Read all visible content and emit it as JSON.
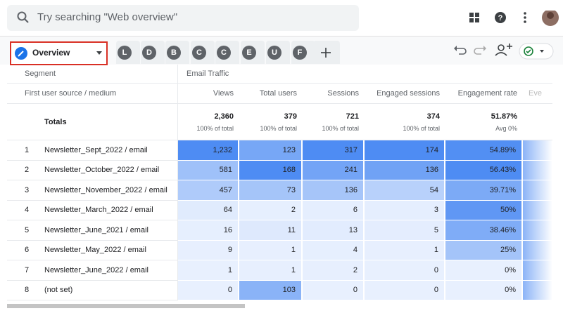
{
  "search": {
    "placeholder": "Try searching \"Web overview\""
  },
  "tabs": {
    "active": "Overview",
    "others": [
      "L",
      "D",
      "B",
      "C",
      "C",
      "E",
      "U",
      "F"
    ]
  },
  "table": {
    "segment_label": "Segment",
    "segment_value": "Email Traffic",
    "dimension_label": "First user source / medium",
    "columns": [
      "Views",
      "Total users",
      "Sessions",
      "Engaged sessions",
      "Engagement rate",
      "Eve"
    ],
    "totals_label": "Totals",
    "totals": [
      [
        "2,360",
        "100% of total"
      ],
      [
        "379",
        "100% of total"
      ],
      [
        "721",
        "100% of total"
      ],
      [
        "374",
        "100% of total"
      ],
      [
        "51.87%",
        "Avg 0%"
      ]
    ],
    "rows": [
      [
        "1",
        "Newsletter_Sept_2022 / email",
        "1,232",
        "123",
        "317",
        "174",
        "54.89%"
      ],
      [
        "2",
        "Newsletter_October_2022 / email",
        "581",
        "168",
        "241",
        "136",
        "56.43%"
      ],
      [
        "3",
        "Newsletter_November_2022 / email",
        "457",
        "73",
        "136",
        "54",
        "39.71%"
      ],
      [
        "4",
        "Newsletter_March_2022 / email",
        "64",
        "2",
        "6",
        "3",
        "50%"
      ],
      [
        "5",
        "Newsletter_June_2021 / email",
        "16",
        "11",
        "13",
        "5",
        "38.46%"
      ],
      [
        "6",
        "Newsletter_May_2022 / email",
        "9",
        "1",
        "4",
        "1",
        "25%"
      ],
      [
        "7",
        "Newsletter_June_2022 / email",
        "1",
        "1",
        "2",
        "0",
        "0%"
      ],
      [
        "8",
        "(not set)",
        "0",
        "103",
        "0",
        "0",
        "0%"
      ]
    ]
  }
}
